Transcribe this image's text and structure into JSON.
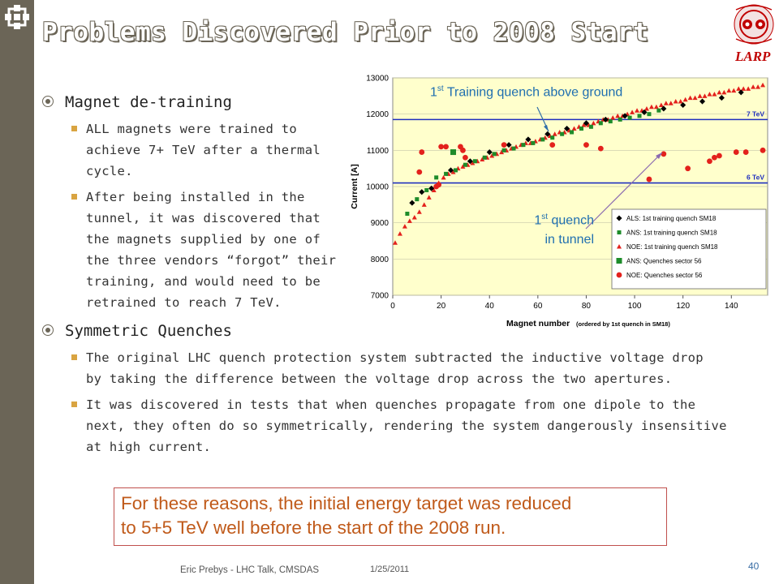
{
  "slide": {
    "title": "Problems Discovered Prior to 2008 Start",
    "logo_text": "LARP",
    "bullets": [
      {
        "heading": "Magnet de-training",
        "subs": [
          [
            "ALL magnets were trained to",
            "achieve 7+ TeV after a thermal",
            "cycle."
          ],
          [
            "After being installed in the",
            "tunnel, it was discovered that",
            "the magnets supplied by one of",
            "the three vendors “forgot” their",
            "training, and would need to be",
            "retrained to reach 7 TeV."
          ]
        ]
      },
      {
        "heading": "Symmetric Quenches",
        "subs": [
          [
            "The original LHC quench protection system subtracted the inductive voltage drop",
            "by taking the difference between the voltage drop across the two apertures."
          ],
          [
            "It was discovered in tests that when quenches propagate from one dipole to the",
            "next, they often do so symmetrically, rendering the system dangerously insensitive",
            "at high current."
          ]
        ]
      }
    ],
    "conclusion": [
      "For these reasons, the initial energy target was reduced",
      "to 5+5 TeV well before the start of the 2008 run."
    ],
    "footer": {
      "author": "Eric Prebys - LHC Talk, CMSDAS",
      "date": "1/25/2011",
      "page": "40"
    },
    "annotations": {
      "training_base": "1",
      "training_sup": "st",
      "training_rest": " Training quench above ground",
      "tunnel_base": "1",
      "tunnel_sup": "st",
      "tunnel_rest": " quench",
      "tunnel_line2": "in tunnel"
    }
  },
  "chart_data": {
    "type": "scatter",
    "xlabel": "Magnet number",
    "xlabel_note": "(ordered by 1st quench in SM18)",
    "ylabel": "Current [A]",
    "xlim": [
      0,
      155
    ],
    "ylim": [
      7000,
      13000
    ],
    "xticks": [
      0,
      20,
      40,
      60,
      80,
      100,
      120,
      140
    ],
    "yticks": [
      7000,
      8000,
      9000,
      10000,
      11000,
      12000,
      13000
    ],
    "ref_lines": [
      {
        "label": "7 TeV",
        "y": 11850
      },
      {
        "label": "6 TeV",
        "y": 10100
      }
    ],
    "colors": {
      "ALS": "#000000",
      "ANS": "#1e8c2a",
      "NOE": "#e3211c",
      "ref": "#1f2fbf",
      "plot_bg": "#ffffcc"
    },
    "legend": [
      "ALS: 1st training quench SM18",
      "ANS: 1st training quench SM18",
      "NOE: 1st training quench SM18",
      "ANS: Quenches sector 56",
      "NOE: Quenches sector 56"
    ],
    "series": [
      {
        "name": "ALS: 1st training quench SM18",
        "x": [
          8,
          12,
          16,
          24,
          32,
          40,
          48,
          56,
          64,
          72,
          80,
          88,
          96,
          104,
          112,
          120,
          128,
          136,
          144
        ],
        "y": [
          9550,
          9850,
          9950,
          10450,
          10700,
          10950,
          11150,
          11300,
          11450,
          11600,
          11750,
          11850,
          11950,
          12050,
          12150,
          12250,
          12350,
          12450,
          12600
        ]
      },
      {
        "name": "ANS: 1st training quench SM18",
        "x": [
          6,
          10,
          14,
          18,
          22,
          26,
          30,
          34,
          38,
          42,
          46,
          50,
          54,
          58,
          62,
          66,
          70,
          74,
          78,
          82,
          86,
          90,
          94,
          98,
          102,
          106,
          110
        ],
        "y": [
          9250,
          9650,
          9900,
          10250,
          10350,
          10450,
          10600,
          10700,
          10800,
          10900,
          11000,
          11050,
          11150,
          11200,
          11300,
          11350,
          11450,
          11500,
          11600,
          11650,
          11750,
          11800,
          11850,
          11900,
          11950,
          12000,
          12100
        ]
      },
      {
        "name": "NOE: 1st training quench SM18",
        "x": [
          1,
          3,
          5,
          7,
          9,
          11,
          13,
          15,
          17,
          19,
          21,
          23,
          25,
          27,
          29,
          31,
          33,
          35,
          37,
          39,
          41,
          43,
          45,
          47,
          49,
          51,
          53,
          55,
          57,
          59,
          61,
          63,
          65,
          67,
          69,
          71,
          73,
          75,
          77,
          79,
          81,
          83,
          85,
          87,
          89,
          91,
          93,
          95,
          97,
          99,
          101,
          103,
          105,
          107,
          109,
          111,
          113,
          115,
          117,
          119,
          121,
          123,
          125,
          127,
          129,
          131,
          133,
          135,
          137,
          139,
          141,
          143,
          145,
          147,
          149,
          151,
          153
        ],
        "y": [
          8450,
          8700,
          8900,
          9050,
          9150,
          9300,
          9500,
          9700,
          9900,
          10100,
          10250,
          10350,
          10400,
          10500,
          10550,
          10600,
          10650,
          10700,
          10750,
          10800,
          10850,
          10900,
          10950,
          11000,
          11050,
          11100,
          11150,
          11200,
          11200,
          11250,
          11300,
          11350,
          11400,
          11450,
          11500,
          11500,
          11550,
          11600,
          11650,
          11700,
          11700,
          11750,
          11800,
          11850,
          11850,
          11900,
          11950,
          11950,
          12000,
          12050,
          12100,
          12100,
          12150,
          12200,
          12200,
          12250,
          12300,
          12300,
          12350,
          12350,
          12400,
          12450,
          12450,
          12500,
          12500,
          12550,
          12550,
          12600,
          12600,
          12650,
          12650,
          12700,
          12700,
          12700,
          12750,
          12750,
          12800
        ]
      },
      {
        "name": "ANS: Quenches sector 56",
        "x": [
          25
        ],
        "y": [
          10950
        ]
      },
      {
        "name": "NOE: Quenches sector 56",
        "x": [
          18,
          19,
          11,
          12,
          20,
          22,
          28,
          29,
          30,
          46,
          66,
          80,
          86,
          106,
          112,
          122,
          131,
          133,
          135,
          142,
          146,
          153
        ],
        "y": [
          10000,
          10050,
          10400,
          10950,
          11100,
          11100,
          11100,
          11000,
          10800,
          11150,
          11150,
          11150,
          11050,
          10200,
          10900,
          10500,
          10700,
          10800,
          10850,
          10950,
          10950,
          11000
        ]
      }
    ]
  }
}
